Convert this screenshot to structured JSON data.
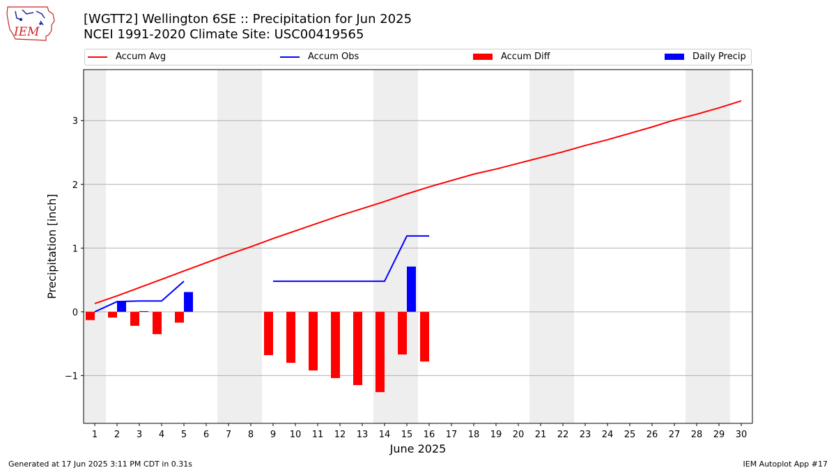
{
  "header": {
    "title_line1": "[WGTT2] Wellington 6SE :: Precipitation for Jun 2025",
    "title_line2": "NCEI 1991-2020 Climate Site: USC00419565"
  },
  "logo": {
    "text": "IEM"
  },
  "footer": {
    "left": "Generated at 17 Jun 2025 3:11 PM CDT in 0.31s",
    "right": "IEM Autoplot App #17"
  },
  "legend": [
    {
      "label": "Accum Avg",
      "kind": "line",
      "color": "#ff0000"
    },
    {
      "label": "Accum Obs",
      "kind": "line",
      "color": "#0000ff"
    },
    {
      "label": "Accum Diff",
      "kind": "bar",
      "color": "#ff0000"
    },
    {
      "label": "Daily Precip",
      "kind": "bar",
      "color": "#0000ff"
    }
  ],
  "chart_data": {
    "type": "line",
    "xlabel": "June 2025",
    "ylabel": "Precipitation [inch]",
    "x": [
      1,
      2,
      3,
      4,
      5,
      6,
      7,
      8,
      9,
      10,
      11,
      12,
      13,
      14,
      15,
      16,
      17,
      18,
      19,
      20,
      21,
      22,
      23,
      24,
      25,
      26,
      27,
      28,
      29,
      30
    ],
    "xlim": [
      0.5,
      30.5
    ],
    "ylim": [
      -1.75,
      3.8
    ],
    "yticks": [
      -1,
      0,
      1,
      2,
      3
    ],
    "ytick_labels": [
      "−1",
      "0",
      "1",
      "2",
      "3"
    ],
    "grid": "horizontal",
    "weekend_shading": [
      [
        0.5,
        1.5
      ],
      [
        6.5,
        8.5
      ],
      [
        13.5,
        15.5
      ],
      [
        20.5,
        22.5
      ],
      [
        27.5,
        29.5
      ]
    ],
    "series": [
      {
        "name": "Accum Avg",
        "kind": "line",
        "color": "#ff0000",
        "x": [
          1,
          2,
          3,
          4,
          5,
          6,
          7,
          8,
          9,
          10,
          11,
          12,
          13,
          14,
          15,
          16,
          17,
          18,
          19,
          20,
          21,
          22,
          23,
          24,
          25,
          26,
          27,
          28,
          29,
          30
        ],
        "values": [
          0.13,
          0.25,
          0.38,
          0.51,
          0.64,
          0.77,
          0.9,
          1.02,
          1.15,
          1.27,
          1.39,
          1.51,
          1.62,
          1.73,
          1.85,
          1.96,
          2.06,
          2.16,
          2.24,
          2.33,
          2.42,
          2.51,
          2.61,
          2.7,
          2.8,
          2.9,
          3.01,
          3.1,
          3.2,
          3.31
        ]
      },
      {
        "name": "Accum Obs",
        "kind": "line",
        "color": "#0000ff",
        "segments": [
          {
            "x": [
              1,
              2,
              3,
              4,
              5
            ],
            "values": [
              0.0,
              0.16,
              0.17,
              0.17,
              0.48
            ]
          },
          {
            "x": [
              9,
              10,
              11,
              12,
              13,
              14,
              15,
              16
            ],
            "values": [
              0.48,
              0.48,
              0.48,
              0.48,
              0.48,
              0.48,
              1.19,
              1.19
            ]
          }
        ]
      },
      {
        "name": "Accum Diff",
        "kind": "bar",
        "color": "#ff0000",
        "x": [
          1,
          2,
          3,
          4,
          5,
          9,
          10,
          11,
          12,
          13,
          14,
          15,
          16
        ],
        "values": [
          -0.13,
          -0.09,
          -0.22,
          -0.35,
          -0.17,
          -0.68,
          -0.8,
          -0.92,
          -1.04,
          -1.15,
          -1.26,
          -0.67,
          -0.78
        ]
      },
      {
        "name": "Daily Precip",
        "kind": "bar",
        "color": "#0000ff",
        "x": [
          2,
          3,
          5,
          15
        ],
        "values": [
          0.16,
          0.01,
          0.31,
          0.71
        ]
      }
    ]
  }
}
